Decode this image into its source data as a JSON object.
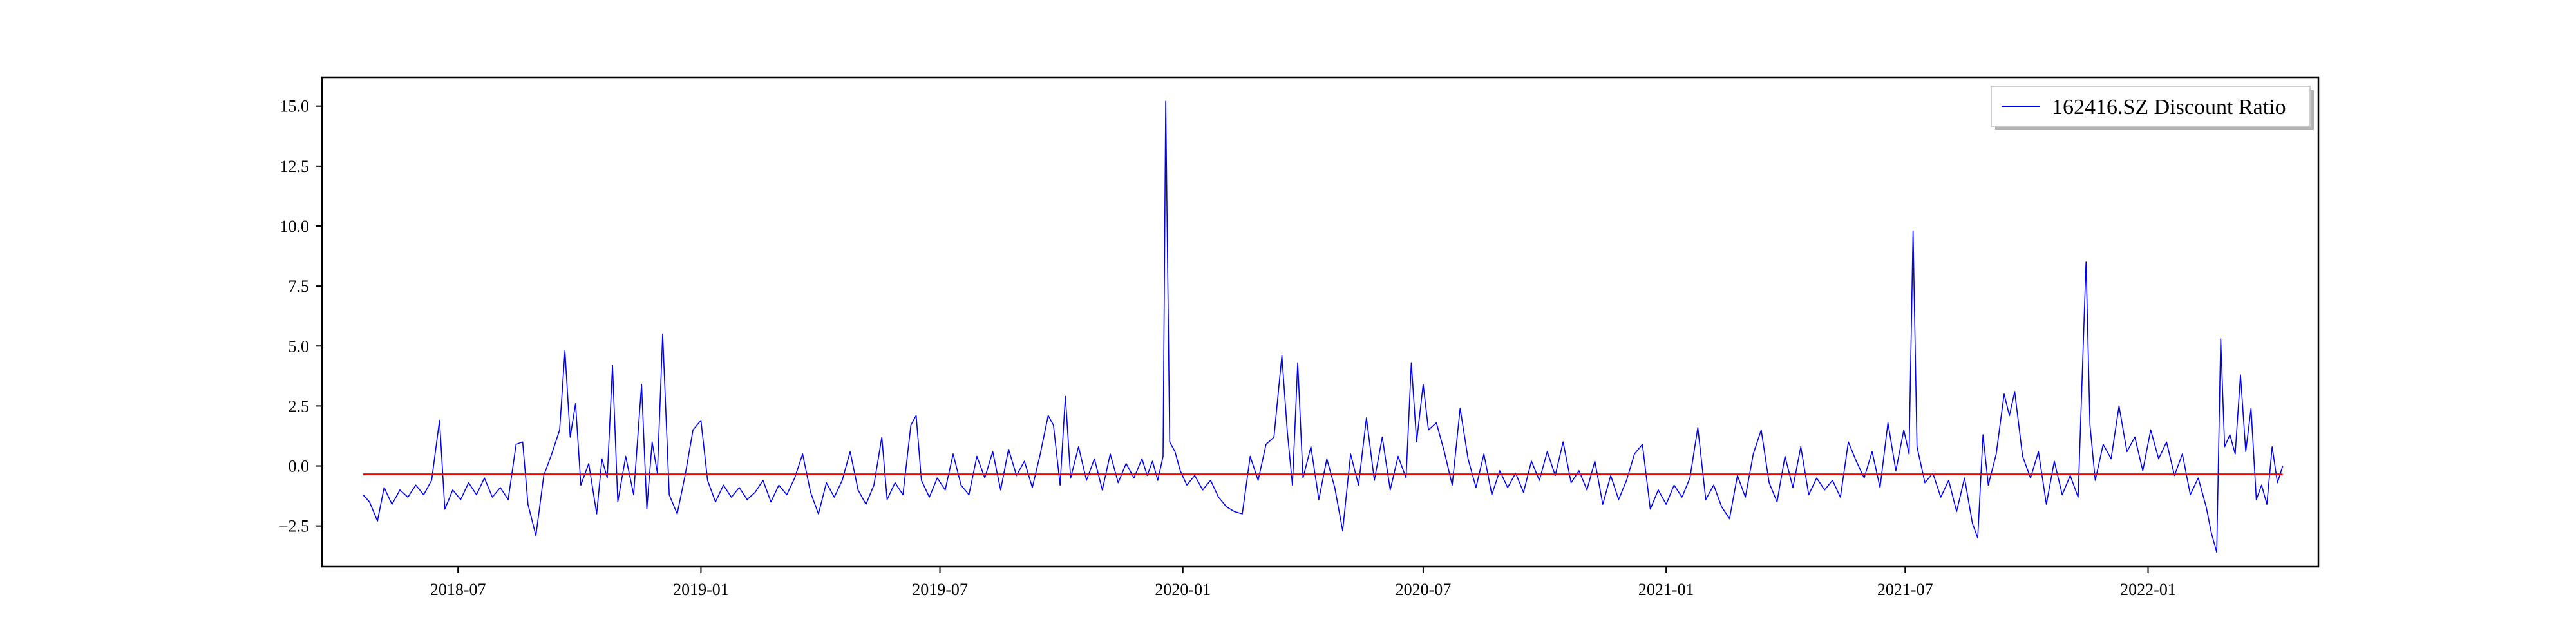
{
  "chart_data": {
    "type": "line",
    "title": "",
    "xlabel": "",
    "ylabel": "",
    "x_range": [
      "2018-03-20",
      "2022-05-10"
    ],
    "ylim": [
      -4.2,
      16.2
    ],
    "grid": false,
    "legend_placement": "top-right",
    "x_ticks": [
      {
        "date": "2018-07-01",
        "label": "2018-07"
      },
      {
        "date": "2019-01-01",
        "label": "2019-01"
      },
      {
        "date": "2019-07-01",
        "label": "2019-07"
      },
      {
        "date": "2020-01-01",
        "label": "2020-01"
      },
      {
        "date": "2020-07-01",
        "label": "2020-07"
      },
      {
        "date": "2021-01-01",
        "label": "2021-01"
      },
      {
        "date": "2021-07-01",
        "label": "2021-07"
      },
      {
        "date": "2022-01-01",
        "label": "2022-01"
      }
    ],
    "y_ticks": [
      {
        "value": -2.5,
        "label": "−2.5"
      },
      {
        "value": 0,
        "label": "0.0"
      },
      {
        "value": 2.5,
        "label": "2.5"
      },
      {
        "value": 5,
        "label": "5.0"
      },
      {
        "value": 7.5,
        "label": "7.5"
      },
      {
        "value": 10,
        "label": "10.0"
      },
      {
        "value": 12.5,
        "label": "12.5"
      },
      {
        "value": 15,
        "label": "15.0"
      }
    ],
    "series": [
      {
        "name": "162416.SZ Discount Ratio",
        "color": "#0000ff",
        "points": [
          [
            "2018-04-20",
            -1.2
          ],
          [
            "2018-04-25",
            -1.5
          ],
          [
            "2018-05-01",
            -2.3
          ],
          [
            "2018-05-06",
            -0.9
          ],
          [
            "2018-05-12",
            -1.6
          ],
          [
            "2018-05-18",
            -1.0
          ],
          [
            "2018-05-24",
            -1.3
          ],
          [
            "2018-05-30",
            -0.8
          ],
          [
            "2018-06-05",
            -1.2
          ],
          [
            "2018-06-11",
            -0.6
          ],
          [
            "2018-06-17",
            1.9
          ],
          [
            "2018-06-21",
            -1.8
          ],
          [
            "2018-06-27",
            -1.0
          ],
          [
            "2018-07-03",
            -1.4
          ],
          [
            "2018-07-09",
            -0.7
          ],
          [
            "2018-07-15",
            -1.2
          ],
          [
            "2018-07-21",
            -0.5
          ],
          [
            "2018-07-27",
            -1.3
          ],
          [
            "2018-08-02",
            -0.9
          ],
          [
            "2018-08-08",
            -1.4
          ],
          [
            "2018-08-14",
            0.9
          ],
          [
            "2018-08-19",
            1.0
          ],
          [
            "2018-08-23",
            -1.6
          ],
          [
            "2018-08-29",
            -2.9
          ],
          [
            "2018-09-04",
            -0.4
          ],
          [
            "2018-09-10",
            0.5
          ],
          [
            "2018-09-16",
            1.5
          ],
          [
            "2018-09-20",
            4.8
          ],
          [
            "2018-09-24",
            1.2
          ],
          [
            "2018-09-28",
            2.6
          ],
          [
            "2018-10-02",
            -0.8
          ],
          [
            "2018-10-08",
            0.1
          ],
          [
            "2018-10-14",
            -2.0
          ],
          [
            "2018-10-18",
            0.3
          ],
          [
            "2018-10-22",
            -0.5
          ],
          [
            "2018-10-26",
            4.2
          ],
          [
            "2018-10-30",
            -1.5
          ],
          [
            "2018-11-05",
            0.4
          ],
          [
            "2018-11-11",
            -1.2
          ],
          [
            "2018-11-17",
            3.4
          ],
          [
            "2018-11-21",
            -1.8
          ],
          [
            "2018-11-25",
            1.0
          ],
          [
            "2018-11-29",
            -0.3
          ],
          [
            "2018-12-03",
            5.5
          ],
          [
            "2018-12-08",
            -1.2
          ],
          [
            "2018-12-14",
            -2.0
          ],
          [
            "2018-12-20",
            -0.4
          ],
          [
            "2018-12-26",
            1.5
          ],
          [
            "2019-01-01",
            1.9
          ],
          [
            "2019-01-06",
            -0.6
          ],
          [
            "2019-01-12",
            -1.5
          ],
          [
            "2019-01-18",
            -0.8
          ],
          [
            "2019-01-24",
            -1.3
          ],
          [
            "2019-01-30",
            -0.9
          ],
          [
            "2019-02-05",
            -1.4
          ],
          [
            "2019-02-11",
            -1.1
          ],
          [
            "2019-02-17",
            -0.6
          ],
          [
            "2019-02-23",
            -1.5
          ],
          [
            "2019-03-01",
            -0.8
          ],
          [
            "2019-03-07",
            -1.2
          ],
          [
            "2019-03-13",
            -0.5
          ],
          [
            "2019-03-19",
            0.5
          ],
          [
            "2019-03-25",
            -1.1
          ],
          [
            "2019-03-31",
            -2.0
          ],
          [
            "2019-04-06",
            -0.7
          ],
          [
            "2019-04-12",
            -1.3
          ],
          [
            "2019-04-18",
            -0.6
          ],
          [
            "2019-04-24",
            0.6
          ],
          [
            "2019-04-30",
            -1.0
          ],
          [
            "2019-05-06",
            -1.6
          ],
          [
            "2019-05-12",
            -0.8
          ],
          [
            "2019-05-18",
            1.2
          ],
          [
            "2019-05-22",
            -1.4
          ],
          [
            "2019-05-28",
            -0.7
          ],
          [
            "2019-06-03",
            -1.2
          ],
          [
            "2019-06-09",
            1.7
          ],
          [
            "2019-06-13",
            2.1
          ],
          [
            "2019-06-17",
            -0.6
          ],
          [
            "2019-06-23",
            -1.3
          ],
          [
            "2019-06-29",
            -0.5
          ],
          [
            "2019-07-05",
            -1.0
          ],
          [
            "2019-07-11",
            0.5
          ],
          [
            "2019-07-17",
            -0.8
          ],
          [
            "2019-07-23",
            -1.2
          ],
          [
            "2019-07-29",
            0.4
          ],
          [
            "2019-08-04",
            -0.5
          ],
          [
            "2019-08-10",
            0.6
          ],
          [
            "2019-08-16",
            -1.0
          ],
          [
            "2019-08-22",
            0.7
          ],
          [
            "2019-08-28",
            -0.4
          ],
          [
            "2019-09-03",
            0.2
          ],
          [
            "2019-09-09",
            -0.9
          ],
          [
            "2019-09-15",
            0.5
          ],
          [
            "2019-09-21",
            2.1
          ],
          [
            "2019-09-25",
            1.7
          ],
          [
            "2019-09-30",
            -0.8
          ],
          [
            "2019-10-04",
            2.9
          ],
          [
            "2019-10-08",
            -0.5
          ],
          [
            "2019-10-14",
            0.8
          ],
          [
            "2019-10-20",
            -0.6
          ],
          [
            "2019-10-26",
            0.3
          ],
          [
            "2019-11-01",
            -1.0
          ],
          [
            "2019-11-07",
            0.5
          ],
          [
            "2019-11-13",
            -0.7
          ],
          [
            "2019-11-19",
            0.1
          ],
          [
            "2019-11-25",
            -0.5
          ],
          [
            "2019-12-01",
            0.3
          ],
          [
            "2019-12-05",
            -0.4
          ],
          [
            "2019-12-09",
            0.2
          ],
          [
            "2019-12-13",
            -0.6
          ],
          [
            "2019-12-17",
            0.4
          ],
          [
            "2019-12-19",
            15.2
          ],
          [
            "2019-12-22",
            1.0
          ],
          [
            "2019-12-26",
            0.6
          ],
          [
            "2019-12-30",
            -0.2
          ],
          [
            "2020-01-04",
            -0.8
          ],
          [
            "2020-01-10",
            -0.4
          ],
          [
            "2020-01-16",
            -1.0
          ],
          [
            "2020-01-22",
            -0.6
          ],
          [
            "2020-01-28",
            -1.3
          ],
          [
            "2020-02-03",
            -1.7
          ],
          [
            "2020-02-09",
            -1.9
          ],
          [
            "2020-02-15",
            -2.0
          ],
          [
            "2020-02-21",
            0.4
          ],
          [
            "2020-02-27",
            -0.6
          ],
          [
            "2020-03-04",
            0.9
          ],
          [
            "2020-03-10",
            1.2
          ],
          [
            "2020-03-16",
            4.6
          ],
          [
            "2020-03-20",
            1.5
          ],
          [
            "2020-03-24",
            -0.8
          ],
          [
            "2020-03-28",
            4.3
          ],
          [
            "2020-04-01",
            -0.5
          ],
          [
            "2020-04-07",
            0.8
          ],
          [
            "2020-04-13",
            -1.4
          ],
          [
            "2020-04-19",
            0.3
          ],
          [
            "2020-04-25",
            -0.9
          ],
          [
            "2020-05-01",
            -2.7
          ],
          [
            "2020-05-07",
            0.5
          ],
          [
            "2020-05-13",
            -0.8
          ],
          [
            "2020-05-19",
            2.0
          ],
          [
            "2020-05-25",
            -0.6
          ],
          [
            "2020-05-31",
            1.2
          ],
          [
            "2020-06-06",
            -1.0
          ],
          [
            "2020-06-12",
            0.4
          ],
          [
            "2020-06-18",
            -0.5
          ],
          [
            "2020-06-22",
            4.3
          ],
          [
            "2020-06-26",
            1.0
          ],
          [
            "2020-07-01",
            3.4
          ],
          [
            "2020-07-05",
            1.5
          ],
          [
            "2020-07-11",
            1.8
          ],
          [
            "2020-07-17",
            0.6
          ],
          [
            "2020-07-23",
            -0.8
          ],
          [
            "2020-07-29",
            2.4
          ],
          [
            "2020-08-04",
            0.3
          ],
          [
            "2020-08-10",
            -0.9
          ],
          [
            "2020-08-16",
            0.5
          ],
          [
            "2020-08-22",
            -1.2
          ],
          [
            "2020-08-28",
            -0.2
          ],
          [
            "2020-09-03",
            -0.9
          ],
          [
            "2020-09-09",
            -0.3
          ],
          [
            "2020-09-15",
            -1.1
          ],
          [
            "2020-09-21",
            0.2
          ],
          [
            "2020-09-27",
            -0.6
          ],
          [
            "2020-10-03",
            0.6
          ],
          [
            "2020-10-09",
            -0.4
          ],
          [
            "2020-10-15",
            1.0
          ],
          [
            "2020-10-21",
            -0.7
          ],
          [
            "2020-10-27",
            -0.2
          ],
          [
            "2020-11-02",
            -1.0
          ],
          [
            "2020-11-08",
            0.2
          ],
          [
            "2020-11-14",
            -1.6
          ],
          [
            "2020-11-20",
            -0.4
          ],
          [
            "2020-11-26",
            -1.4
          ],
          [
            "2020-12-02",
            -0.6
          ],
          [
            "2020-12-08",
            0.5
          ],
          [
            "2020-12-14",
            0.9
          ],
          [
            "2020-12-20",
            -1.8
          ],
          [
            "2020-12-26",
            -1.0
          ],
          [
            "2021-01-01",
            -1.6
          ],
          [
            "2021-01-07",
            -0.8
          ],
          [
            "2021-01-13",
            -1.3
          ],
          [
            "2021-01-19",
            -0.5
          ],
          [
            "2021-01-25",
            1.6
          ],
          [
            "2021-01-31",
            -1.4
          ],
          [
            "2021-02-06",
            -0.8
          ],
          [
            "2021-02-12",
            -1.7
          ],
          [
            "2021-02-18",
            -2.2
          ],
          [
            "2021-02-24",
            -0.4
          ],
          [
            "2021-03-02",
            -1.3
          ],
          [
            "2021-03-08",
            0.5
          ],
          [
            "2021-03-14",
            1.5
          ],
          [
            "2021-03-20",
            -0.7
          ],
          [
            "2021-03-26",
            -1.5
          ],
          [
            "2021-04-01",
            0.4
          ],
          [
            "2021-04-07",
            -0.9
          ],
          [
            "2021-04-13",
            0.8
          ],
          [
            "2021-04-19",
            -1.2
          ],
          [
            "2021-04-25",
            -0.5
          ],
          [
            "2021-05-01",
            -1.0
          ],
          [
            "2021-05-07",
            -0.6
          ],
          [
            "2021-05-13",
            -1.3
          ],
          [
            "2021-05-19",
            1.0
          ],
          [
            "2021-05-25",
            0.2
          ],
          [
            "2021-05-31",
            -0.5
          ],
          [
            "2021-06-06",
            0.6
          ],
          [
            "2021-06-12",
            -0.9
          ],
          [
            "2021-06-18",
            1.8
          ],
          [
            "2021-06-24",
            -0.2
          ],
          [
            "2021-06-30",
            1.5
          ],
          [
            "2021-07-04",
            0.5
          ],
          [
            "2021-07-07",
            9.8
          ],
          [
            "2021-07-10",
            0.8
          ],
          [
            "2021-07-16",
            -0.7
          ],
          [
            "2021-07-22",
            -0.3
          ],
          [
            "2021-07-28",
            -1.3
          ],
          [
            "2021-08-03",
            -0.6
          ],
          [
            "2021-08-09",
            -1.9
          ],
          [
            "2021-08-15",
            -0.5
          ],
          [
            "2021-08-21",
            -2.4
          ],
          [
            "2021-08-25",
            -3.0
          ],
          [
            "2021-08-29",
            1.3
          ],
          [
            "2021-09-02",
            -0.8
          ],
          [
            "2021-09-08",
            0.5
          ],
          [
            "2021-09-14",
            3.0
          ],
          [
            "2021-09-18",
            2.1
          ],
          [
            "2021-09-22",
            3.1
          ],
          [
            "2021-09-28",
            0.4
          ],
          [
            "2021-10-04",
            -0.5
          ],
          [
            "2021-10-10",
            0.6
          ],
          [
            "2021-10-16",
            -1.6
          ],
          [
            "2021-10-22",
            0.2
          ],
          [
            "2021-10-28",
            -1.2
          ],
          [
            "2021-11-03",
            -0.4
          ],
          [
            "2021-11-09",
            -1.3
          ],
          [
            "2021-11-15",
            8.5
          ],
          [
            "2021-11-18",
            1.7
          ],
          [
            "2021-11-22",
            -0.6
          ],
          [
            "2021-11-28",
            0.9
          ],
          [
            "2021-12-04",
            0.3
          ],
          [
            "2021-12-10",
            2.5
          ],
          [
            "2021-12-16",
            0.6
          ],
          [
            "2021-12-22",
            1.2
          ],
          [
            "2021-12-28",
            -0.2
          ],
          [
            "2022-01-03",
            1.5
          ],
          [
            "2022-01-09",
            0.3
          ],
          [
            "2022-01-15",
            1.0
          ],
          [
            "2022-01-21",
            -0.4
          ],
          [
            "2022-01-27",
            0.5
          ],
          [
            "2022-02-02",
            -1.2
          ],
          [
            "2022-02-08",
            -0.5
          ],
          [
            "2022-02-14",
            -1.7
          ],
          [
            "2022-02-18",
            -2.8
          ],
          [
            "2022-02-22",
            -3.6
          ],
          [
            "2022-02-25",
            5.3
          ],
          [
            "2022-02-28",
            0.8
          ],
          [
            "2022-03-04",
            1.3
          ],
          [
            "2022-03-08",
            0.5
          ],
          [
            "2022-03-12",
            3.8
          ],
          [
            "2022-03-16",
            0.6
          ],
          [
            "2022-03-20",
            2.4
          ],
          [
            "2022-03-24",
            -1.4
          ],
          [
            "2022-03-28",
            -0.8
          ],
          [
            "2022-04-01",
            -1.6
          ],
          [
            "2022-04-05",
            0.8
          ],
          [
            "2022-04-09",
            -0.7
          ],
          [
            "2022-04-13",
            0.0
          ]
        ]
      },
      {
        "color": "#ff0000",
        "points": [
          [
            "2018-04-20",
            -0.35
          ],
          [
            "2022-04-13",
            -0.35
          ]
        ]
      }
    ]
  }
}
